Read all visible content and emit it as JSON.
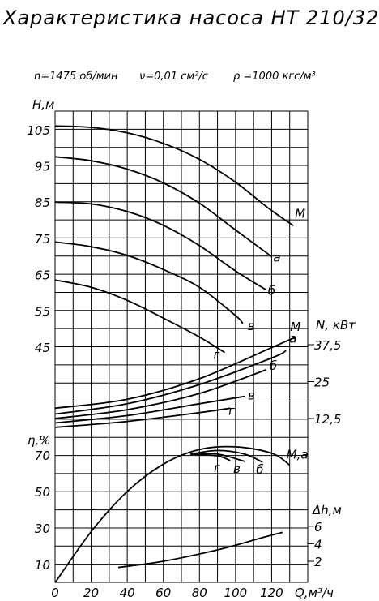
{
  "chart_data": {
    "type": "line",
    "title": "Характеристика насоса НТ 210/320",
    "subtitle": {
      "n": "n=1475 об/мин",
      "nu": "ν=0,01 см²/с",
      "rho": "ρ =1000 кгс/м³"
    },
    "x_axis": {
      "label": "Q,м³/ч",
      "range": [
        0,
        140
      ],
      "ticks": [
        "0",
        "20",
        "40",
        "60",
        "80",
        "100",
        "120"
      ],
      "tick_values": [
        0,
        20,
        40,
        60,
        80,
        100,
        120
      ]
    },
    "head": {
      "label": "Н,м",
      "range": [
        42,
        108
      ],
      "ticks": [
        "105",
        "95",
        "85",
        "75",
        "65",
        "55",
        "45"
      ],
      "tick_values": [
        105,
        95,
        85,
        75,
        65,
        55,
        45
      ],
      "series": [
        {
          "name": "М",
          "x": [
            0,
            20,
            40,
            60,
            80,
            100,
            118,
            132
          ],
          "y": [
            106,
            105.6,
            104.1,
            101.2,
            96.8,
            90.5,
            83.4,
            78.5
          ]
        },
        {
          "name": "а",
          "x": [
            0,
            20,
            40,
            60,
            80,
            100,
            120
          ],
          "y": [
            97.5,
            96.4,
            94.1,
            90.3,
            84.7,
            77.3,
            70
          ]
        },
        {
          "name": "б",
          "x": [
            0,
            20,
            40,
            60,
            80,
            100,
            117
          ],
          "y": [
            85,
            84.5,
            82.4,
            78.6,
            73,
            66,
            60.8
          ]
        },
        {
          "name": "в",
          "x": [
            0,
            20,
            40,
            60,
            80,
            100,
            104
          ],
          "y": [
            74,
            72.7,
            70.3,
            66.4,
            61.5,
            53.7,
            51.5
          ]
        },
        {
          "name": "г",
          "x": [
            0,
            20,
            40,
            60,
            80,
            94
          ],
          "y": [
            63.5,
            61.5,
            57.9,
            53,
            47.8,
            43.5
          ]
        }
      ]
    },
    "power": {
      "label": "N, кВт",
      "ticks": [
        "37,5",
        "25",
        "12,5"
      ],
      "tick_values": [
        37.5,
        25,
        12.5
      ],
      "series": [
        {
          "name": "М",
          "x": [
            0,
            40,
            80,
            120,
            133
          ],
          "y": [
            16,
            19,
            26,
            36.5,
            40
          ]
        },
        {
          "name": "а",
          "x": [
            0,
            40,
            80,
            120,
            128
          ],
          "y": [
            14,
            17.5,
            24,
            33,
            35.5
          ]
        },
        {
          "name": "б",
          "x": [
            0,
            40,
            80,
            117
          ],
          "y": [
            12.5,
            15.5,
            21,
            29
          ]
        },
        {
          "name": "в",
          "x": [
            0,
            40,
            80,
            105
          ],
          "y": [
            11,
            13.5,
            17.5,
            20
          ]
        },
        {
          "name": "г",
          "x": [
            0,
            40,
            80,
            97
          ],
          "y": [
            9.5,
            11.5,
            14.5,
            16
          ]
        }
      ]
    },
    "efficiency": {
      "label": "η,%",
      "range": [
        0,
        80
      ],
      "ticks": [
        "70",
        "50",
        "30",
        "10"
      ],
      "tick_values": [
        70,
        50,
        30,
        10
      ],
      "series": [
        {
          "name": "М,а",
          "x": [
            0,
            20,
            40,
            60,
            80,
            100,
            120,
            130
          ],
          "y": [
            0,
            28,
            50,
            65,
            73,
            74.5,
            71,
            64.5
          ]
        },
        {
          "name": "б",
          "x": [
            75,
            90,
            105,
            115
          ],
          "y": [
            70.5,
            72.5,
            70.5,
            66
          ]
        },
        {
          "name": "в",
          "x": [
            75,
            90,
            105
          ],
          "y": [
            70.5,
            70.5,
            66.5
          ]
        },
        {
          "name": "г",
          "x": [
            75,
            90,
            97
          ],
          "y": [
            70.5,
            69.5,
            67
          ]
        }
      ]
    },
    "npsh": {
      "label": "Δh,м",
      "ticks": [
        "6",
        "4",
        "2"
      ],
      "tick_values": [
        6,
        4,
        2
      ],
      "series": [
        {
          "name": "",
          "x": [
            35,
            60,
            90,
            115,
            126
          ],
          "y": [
            1.3,
            2.0,
            3.3,
            4.7,
            5.3
          ]
        }
      ]
    },
    "curve_labels": {
      "head": [
        "М",
        "а",
        "б",
        "в",
        "г"
      ],
      "power": [
        "М",
        "а",
        "б",
        "в",
        "г"
      ],
      "eff": [
        "М,а",
        "б",
        "в",
        "г"
      ]
    },
    "grid": true
  }
}
